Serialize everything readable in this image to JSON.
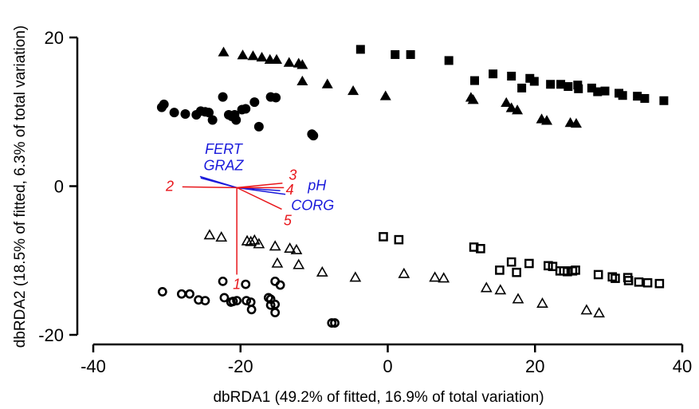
{
  "chart_data": {
    "type": "scatter",
    "title": "",
    "xlabel": "dbRDA1 (49.2% of fitted, 16.9% of total variation)",
    "ylabel": "dbRDA2 (18.5% of fitted, 6.3% of total variation)",
    "xlim": [
      -40,
      40
    ],
    "ylim": [
      -20,
      20
    ],
    "x_ticks": [
      -40,
      -20,
      0,
      20,
      40
    ],
    "y_ticks": [
      -20,
      0,
      20
    ],
    "x_tick_labels": [
      "-40",
      "-20",
      "0",
      "20",
      "40"
    ],
    "y_tick_labels": [
      "-20",
      "0",
      "20"
    ],
    "grid": false,
    "legend": "none",
    "series": [
      {
        "marker": "filled-circle",
        "points": [
          [
            -30.7,
            10.6
          ],
          [
            -30.4,
            11.0
          ],
          [
            -29.0,
            9.9
          ],
          [
            -27.5,
            9.7
          ],
          [
            -26.0,
            9.6
          ],
          [
            -25.4,
            10.1
          ],
          [
            -24.8,
            10.0
          ],
          [
            -24.3,
            9.9
          ],
          [
            -23.8,
            8.9
          ],
          [
            -22.4,
            12.0
          ],
          [
            -21.6,
            9.6
          ],
          [
            -21.2,
            9.4
          ],
          [
            -20.8,
            9.6
          ],
          [
            -20.6,
            8.9
          ],
          [
            -19.8,
            10.3
          ],
          [
            -19.3,
            10.4
          ],
          [
            -18.1,
            11.3
          ],
          [
            -17.5,
            8.0
          ],
          [
            -15.9,
            12.0
          ],
          [
            -15.2,
            11.9
          ],
          [
            -10.3,
            7.0
          ],
          [
            -10.1,
            6.8
          ]
        ]
      },
      {
        "marker": "filled-triangle",
        "points": [
          [
            -22.3,
            18.0
          ],
          [
            -19.7,
            17.6
          ],
          [
            -18.3,
            17.5
          ],
          [
            -17.1,
            17.3
          ],
          [
            -16.0,
            17.0
          ],
          [
            -15.1,
            17.0
          ],
          [
            -13.4,
            16.6
          ],
          [
            -12.1,
            16.5
          ],
          [
            -11.6,
            16.3
          ],
          [
            -11.6,
            14.1
          ],
          [
            -8.2,
            13.7
          ],
          [
            -4.7,
            12.8
          ],
          [
            -0.3,
            12.1
          ],
          [
            11.3,
            11.9
          ],
          [
            11.6,
            11.6
          ],
          [
            16.1,
            11.2
          ],
          [
            16.8,
            10.5
          ],
          [
            17.6,
            10.2
          ],
          [
            20.9,
            9.0
          ],
          [
            21.6,
            8.8
          ],
          [
            24.8,
            8.5
          ],
          [
            25.6,
            8.4
          ]
        ]
      },
      {
        "marker": "filled-square",
        "points": [
          [
            -3.7,
            18.4
          ],
          [
            1.0,
            17.7
          ],
          [
            3.1,
            17.7
          ],
          [
            8.3,
            16.9
          ],
          [
            11.8,
            14.2
          ],
          [
            14.3,
            15.1
          ],
          [
            16.8,
            14.8
          ],
          [
            18.2,
            13.2
          ],
          [
            19.3,
            14.5
          ],
          [
            19.9,
            14.1
          ],
          [
            22.1,
            13.7
          ],
          [
            23.5,
            13.7
          ],
          [
            24.5,
            13.4
          ],
          [
            25.8,
            13.6
          ],
          [
            25.9,
            13.1
          ],
          [
            27.7,
            13.2
          ],
          [
            28.5,
            12.7
          ],
          [
            29.5,
            12.8
          ],
          [
            31.4,
            12.5
          ],
          [
            31.9,
            12.2
          ],
          [
            33.9,
            12.1
          ],
          [
            34.9,
            11.8
          ],
          [
            37.5,
            11.5
          ]
        ]
      },
      {
        "marker": "open-circle",
        "points": [
          [
            -30.6,
            -14.2
          ],
          [
            -28.0,
            -14.5
          ],
          [
            -26.9,
            -14.5
          ],
          [
            -25.7,
            -15.3
          ],
          [
            -24.8,
            -15.4
          ],
          [
            -22.2,
            -15.0
          ],
          [
            -22.4,
            -12.8
          ],
          [
            -21.3,
            -15.6
          ],
          [
            -21.0,
            -15.5
          ],
          [
            -20.5,
            -15.4
          ],
          [
            -19.3,
            -13.2
          ],
          [
            -19.2,
            -15.4
          ],
          [
            -18.6,
            -15.6
          ],
          [
            -18.5,
            -16.6
          ],
          [
            -16.2,
            -15.0
          ],
          [
            -15.9,
            -15.2
          ],
          [
            -15.9,
            -16.0
          ],
          [
            -15.3,
            -15.9
          ],
          [
            -15.3,
            -17.0
          ],
          [
            -15.3,
            -12.8
          ],
          [
            -14.6,
            -13.3
          ],
          [
            -7.6,
            -18.4
          ],
          [
            -7.2,
            -18.4
          ]
        ]
      },
      {
        "marker": "open-triangle",
        "points": [
          [
            -24.2,
            -6.6
          ],
          [
            -22.6,
            -6.9
          ],
          [
            -19.1,
            -7.4
          ],
          [
            -18.6,
            -7.5
          ],
          [
            -18.1,
            -7.3
          ],
          [
            -17.5,
            -7.8
          ],
          [
            -15.3,
            -8.1
          ],
          [
            -15.0,
            -10.4
          ],
          [
            -13.3,
            -8.4
          ],
          [
            -12.4,
            -8.6
          ],
          [
            -12.1,
            -10.6
          ],
          [
            -8.9,
            -11.6
          ],
          [
            -4.4,
            -12.3
          ],
          [
            2.2,
            -11.8
          ],
          [
            6.4,
            -12.3
          ],
          [
            7.6,
            -12.4
          ],
          [
            13.4,
            -13.7
          ],
          [
            15.3,
            -14.0
          ],
          [
            17.7,
            -15.2
          ],
          [
            21.0,
            -15.8
          ],
          [
            27.0,
            -16.7
          ],
          [
            28.7,
            -17.1
          ]
        ]
      },
      {
        "marker": "open-square",
        "points": [
          [
            -0.6,
            -6.8
          ],
          [
            1.5,
            -7.2
          ],
          [
            11.7,
            -8.2
          ],
          [
            12.6,
            -8.4
          ],
          [
            15.2,
            -11.3
          ],
          [
            16.8,
            -10.2
          ],
          [
            17.5,
            -11.6
          ],
          [
            19.2,
            -10.4
          ],
          [
            21.8,
            -10.7
          ],
          [
            22.4,
            -10.8
          ],
          [
            23.4,
            -11.4
          ],
          [
            23.9,
            -11.4
          ],
          [
            24.4,
            -11.5
          ],
          [
            25.1,
            -11.4
          ],
          [
            25.5,
            -11.3
          ],
          [
            28.6,
            -11.9
          ],
          [
            30.5,
            -12.2
          ],
          [
            30.9,
            -12.4
          ],
          [
            32.6,
            -12.3
          ],
          [
            32.7,
            -12.7
          ],
          [
            34.1,
            -12.9
          ],
          [
            35.3,
            -13.0
          ],
          [
            36.9,
            -13.1
          ]
        ]
      }
    ],
    "origin": [
      -20.5,
      -0.2
    ],
    "vectors": [
      {
        "label": "FERT",
        "color": "#1a1adb",
        "end": [
          -25.4,
          1.1
        ]
      },
      {
        "label": "GRAZ",
        "color": "#1a1adb",
        "end": [
          -25.5,
          1.3
        ]
      },
      {
        "label": "pH",
        "color": "#1a1adb",
        "end": [
          -14.6,
          -0.6
        ]
      },
      {
        "label": "CORG",
        "color": "#1a1adb",
        "end": [
          -13.9,
          -1.1
        ]
      },
      {
        "label": "1",
        "color": "#e8161b",
        "end": [
          -20.5,
          -11.9
        ]
      },
      {
        "label": "2",
        "color": "#e8161b",
        "end": [
          -27.9,
          -0.1
        ]
      },
      {
        "label": "3",
        "color": "#e8161b",
        "end": [
          -14.3,
          0.4
        ]
      },
      {
        "label": "4",
        "color": "#e8161b",
        "end": [
          -14.1,
          -0.2
        ]
      },
      {
        "label": "5",
        "color": "#e8161b",
        "end": [
          -14.4,
          -3.1
        ]
      }
    ],
    "vector_labels": [
      {
        "text": "FERT",
        "color": "#1a1adb",
        "at": [
          -22.3,
          5.0
        ]
      },
      {
        "text": "GRAZ",
        "color": "#1a1adb",
        "at": [
          -22.3,
          2.8
        ]
      },
      {
        "text": "pH",
        "color": "#1a1adb",
        "at": [
          -9.6,
          0.1
        ]
      },
      {
        "text": "CORG",
        "color": "#1a1adb",
        "at": [
          -10.2,
          -2.6
        ]
      },
      {
        "text": "1",
        "color": "#e8161b",
        "at": [
          -20.5,
          -13.2
        ]
      },
      {
        "text": "2",
        "color": "#e8161b",
        "at": [
          -29.6,
          0.0
        ]
      },
      {
        "text": "3",
        "color": "#e8161b",
        "at": [
          -12.9,
          1.5
        ]
      },
      {
        "text": "4",
        "color": "#e8161b",
        "at": [
          -13.3,
          -0.5
        ]
      },
      {
        "text": "5",
        "color": "#e8161b",
        "at": [
          -13.6,
          -4.6
        ]
      }
    ]
  }
}
